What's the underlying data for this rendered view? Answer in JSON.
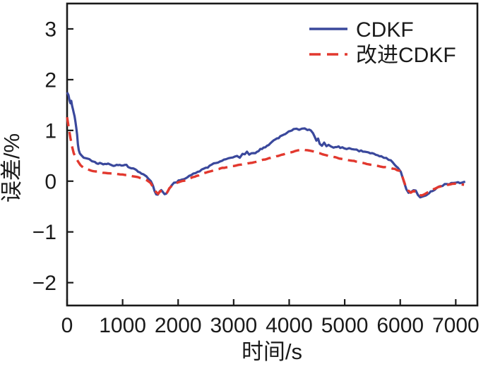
{
  "figure": {
    "background": "#ffffff"
  },
  "chart_data": {
    "type": "line",
    "title": "",
    "xlabel": "时间/s",
    "ylabel": "误差/%",
    "xlim": [
      0,
      7390
    ],
    "ylim": [
      -2.45,
      3.5
    ],
    "xticks": [
      0,
      1000,
      2000,
      3000,
      4000,
      5000,
      6000,
      7000
    ],
    "yticks": [
      3,
      2,
      1,
      0,
      -1,
      -2
    ],
    "grid": false,
    "axis_color": "#1a1a1a",
    "tick_label_color": "#1a1a1a",
    "legend": {
      "position": "top-right-inside",
      "border": false
    },
    "series": [
      {
        "name": "CDKF",
        "color": "#3a489c",
        "line_style": "solid",
        "line_width": 3.2,
        "noise": 0.015,
        "points": [
          [
            0,
            1.75
          ],
          [
            25,
            1.68
          ],
          [
            45,
            1.6
          ],
          [
            60,
            1.55
          ],
          [
            75,
            1.57
          ],
          [
            90,
            1.48
          ],
          [
            105,
            1.42
          ],
          [
            120,
            1.35
          ],
          [
            135,
            1.28
          ],
          [
            150,
            1.18
          ],
          [
            165,
            1.05
          ],
          [
            180,
            0.9
          ],
          [
            195,
            0.72
          ],
          [
            210,
            0.6
          ],
          [
            230,
            0.55
          ],
          [
            260,
            0.52
          ],
          [
            300,
            0.47
          ],
          [
            350,
            0.44
          ],
          [
            400,
            0.42
          ],
          [
            450,
            0.4
          ],
          [
            500,
            0.38
          ],
          [
            560,
            0.35
          ],
          [
            620,
            0.34
          ],
          [
            680,
            0.33
          ],
          [
            740,
            0.35
          ],
          [
            800,
            0.32
          ],
          [
            860,
            0.31
          ],
          [
            920,
            0.33
          ],
          [
            980,
            0.31
          ],
          [
            1040,
            0.33
          ],
          [
            1100,
            0.29
          ],
          [
            1160,
            0.26
          ],
          [
            1220,
            0.23
          ],
          [
            1280,
            0.19
          ],
          [
            1340,
            0.15
          ],
          [
            1400,
            0.11
          ],
          [
            1460,
            0.06
          ],
          [
            1510,
            0.01
          ],
          [
            1545,
            -0.08
          ],
          [
            1575,
            -0.2
          ],
          [
            1605,
            -0.26
          ],
          [
            1635,
            -0.27
          ],
          [
            1665,
            -0.21
          ],
          [
            1695,
            -0.17
          ],
          [
            1725,
            -0.21
          ],
          [
            1755,
            -0.25
          ],
          [
            1785,
            -0.24
          ],
          [
            1815,
            -0.19
          ],
          [
            1845,
            -0.13
          ],
          [
            1880,
            -0.08
          ],
          [
            1925,
            -0.04
          ],
          [
            1975,
            -0.01
          ],
          [
            2040,
            0.02
          ],
          [
            2100,
            0.05
          ],
          [
            2200,
            0.1
          ],
          [
            2350,
            0.18
          ],
          [
            2500,
            0.26
          ],
          [
            2600,
            0.32
          ],
          [
            2720,
            0.38
          ],
          [
            2860,
            0.44
          ],
          [
            2950,
            0.47
          ],
          [
            3020,
            0.49
          ],
          [
            3060,
            0.5
          ],
          [
            3110,
            0.47
          ],
          [
            3160,
            0.55
          ],
          [
            3200,
            0.52
          ],
          [
            3240,
            0.57
          ],
          [
            3280,
            0.51
          ],
          [
            3320,
            0.56
          ],
          [
            3360,
            0.55
          ],
          [
            3420,
            0.58
          ],
          [
            3480,
            0.62
          ],
          [
            3540,
            0.66
          ],
          [
            3600,
            0.7
          ],
          [
            3660,
            0.74
          ],
          [
            3720,
            0.79
          ],
          [
            3780,
            0.84
          ],
          [
            3840,
            0.88
          ],
          [
            3900,
            0.92
          ],
          [
            3960,
            0.96
          ],
          [
            4020,
            0.99
          ],
          [
            4080,
            1.02
          ],
          [
            4130,
            1.04
          ],
          [
            4180,
            1.02
          ],
          [
            4230,
            1.05
          ],
          [
            4280,
            1.04
          ],
          [
            4330,
            1.02
          ],
          [
            4390,
            0.99
          ],
          [
            4430,
            0.95
          ],
          [
            4460,
            0.88
          ],
          [
            4490,
            0.8
          ],
          [
            4520,
            0.84
          ],
          [
            4550,
            0.74
          ],
          [
            4590,
            0.71
          ],
          [
            4630,
            0.76
          ],
          [
            4670,
            0.7
          ],
          [
            4710,
            0.73
          ],
          [
            4750,
            0.69
          ],
          [
            4800,
            0.67
          ],
          [
            4860,
            0.68
          ],
          [
            4920,
            0.66
          ],
          [
            4990,
            0.65
          ],
          [
            5080,
            0.64
          ],
          [
            5170,
            0.62
          ],
          [
            5260,
            0.6
          ],
          [
            5360,
            0.58
          ],
          [
            5460,
            0.56
          ],
          [
            5560,
            0.52
          ],
          [
            5660,
            0.48
          ],
          [
            5750,
            0.45
          ],
          [
            5830,
            0.41
          ],
          [
            5900,
            0.33
          ],
          [
            5960,
            0.26
          ],
          [
            6010,
            0.18
          ],
          [
            6060,
            0.02
          ],
          [
            6110,
            -0.16
          ],
          [
            6150,
            -0.23
          ],
          [
            6200,
            -0.22
          ],
          [
            6240,
            -0.17
          ],
          [
            6280,
            -0.18
          ],
          [
            6320,
            -0.26
          ],
          [
            6360,
            -0.31
          ],
          [
            6410,
            -0.3
          ],
          [
            6460,
            -0.27
          ],
          [
            6520,
            -0.23
          ],
          [
            6580,
            -0.19
          ],
          [
            6650,
            -0.14
          ],
          [
            6720,
            -0.1
          ],
          [
            6800,
            -0.07
          ],
          [
            6880,
            -0.05
          ],
          [
            6960,
            -0.04
          ],
          [
            7040,
            -0.03
          ],
          [
            7110,
            -0.04
          ],
          [
            7170,
            -0.01
          ]
        ]
      },
      {
        "name": "改进CDKF",
        "color": "#e2382e",
        "line_style": "dashed",
        "line_width": 3.4,
        "noise": 0.004,
        "points": [
          [
            0,
            1.26
          ],
          [
            30,
            1.05
          ],
          [
            60,
            0.85
          ],
          [
            90,
            0.68
          ],
          [
            120,
            0.55
          ],
          [
            160,
            0.46
          ],
          [
            200,
            0.38
          ],
          [
            240,
            0.32
          ],
          [
            290,
            0.27
          ],
          [
            340,
            0.24
          ],
          [
            400,
            0.22
          ],
          [
            470,
            0.2
          ],
          [
            550,
            0.19
          ],
          [
            640,
            0.17
          ],
          [
            730,
            0.16
          ],
          [
            820,
            0.15
          ],
          [
            910,
            0.14
          ],
          [
            1000,
            0.13
          ],
          [
            1090,
            0.12
          ],
          [
            1180,
            0.1
          ],
          [
            1270,
            0.08
          ],
          [
            1360,
            0.05
          ],
          [
            1440,
            0.02
          ],
          [
            1500,
            -0.03
          ],
          [
            1550,
            -0.12
          ],
          [
            1600,
            -0.21
          ],
          [
            1640,
            -0.25
          ],
          [
            1680,
            -0.19
          ],
          [
            1720,
            -0.21
          ],
          [
            1760,
            -0.25
          ],
          [
            1800,
            -0.23
          ],
          [
            1840,
            -0.14
          ],
          [
            1900,
            -0.08
          ],
          [
            1960,
            -0.04
          ],
          [
            2030,
            -0.01
          ],
          [
            2110,
            0.01
          ],
          [
            2200,
            0.05
          ],
          [
            2300,
            0.09
          ],
          [
            2400,
            0.13
          ],
          [
            2500,
            0.17
          ],
          [
            2600,
            0.2
          ],
          [
            2700,
            0.23
          ],
          [
            2800,
            0.26
          ],
          [
            2900,
            0.28
          ],
          [
            3000,
            0.3
          ],
          [
            3100,
            0.32
          ],
          [
            3200,
            0.34
          ],
          [
            3300,
            0.36
          ],
          [
            3400,
            0.38
          ],
          [
            3500,
            0.41
          ],
          [
            3600,
            0.44
          ],
          [
            3700,
            0.47
          ],
          [
            3800,
            0.5
          ],
          [
            3900,
            0.53
          ],
          [
            4000,
            0.56
          ],
          [
            4100,
            0.59
          ],
          [
            4170,
            0.61
          ],
          [
            4250,
            0.62
          ],
          [
            4330,
            0.61
          ],
          [
            4420,
            0.59
          ],
          [
            4510,
            0.56
          ],
          [
            4600,
            0.53
          ],
          [
            4700,
            0.5
          ],
          [
            4800,
            0.48
          ],
          [
            4900,
            0.45
          ],
          [
            5000,
            0.43
          ],
          [
            5100,
            0.41
          ],
          [
            5200,
            0.39
          ],
          [
            5300,
            0.37
          ],
          [
            5400,
            0.34
          ],
          [
            5500,
            0.32
          ],
          [
            5600,
            0.3
          ],
          [
            5700,
            0.28
          ],
          [
            5800,
            0.27
          ],
          [
            5900,
            0.24
          ],
          [
            5990,
            0.2
          ],
          [
            6040,
            0.08
          ],
          [
            6090,
            -0.08
          ],
          [
            6140,
            -0.18
          ],
          [
            6190,
            -0.23
          ],
          [
            6240,
            -0.19
          ],
          [
            6290,
            -0.21
          ],
          [
            6340,
            -0.27
          ],
          [
            6390,
            -0.28
          ],
          [
            6450,
            -0.25
          ],
          [
            6520,
            -0.21
          ],
          [
            6600,
            -0.16
          ],
          [
            6680,
            -0.12
          ],
          [
            6770,
            -0.09
          ],
          [
            6870,
            -0.07
          ],
          [
            6970,
            -0.05
          ],
          [
            7070,
            -0.06
          ],
          [
            7150,
            -0.07
          ]
        ]
      }
    ]
  }
}
